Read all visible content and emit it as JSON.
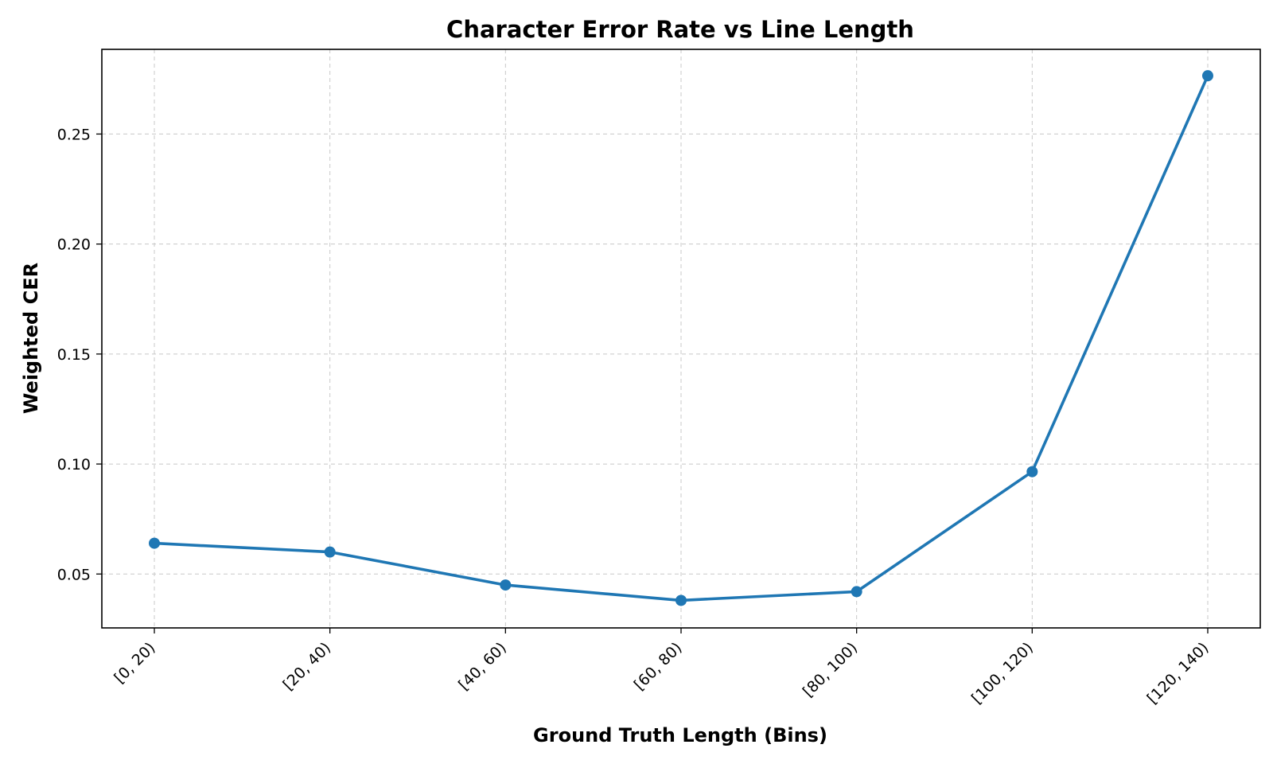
{
  "chart_data": {
    "type": "line",
    "title": "Character Error Rate vs Line Length",
    "xlabel": "Ground Truth Length (Bins)",
    "ylabel": "Weighted CER",
    "categories": [
      "[0, 20)",
      "[20, 40)",
      "[40, 60)",
      "[60, 80)",
      "[80, 100)",
      "[100, 120)",
      "[120, 140)"
    ],
    "series": [
      {
        "values": [
          0.064,
          0.06,
          0.045,
          0.038,
          0.042,
          0.0965,
          0.2765
        ],
        "color": "#1f77b4",
        "marker": "circle"
      }
    ],
    "yticks": [
      0.05,
      0.1,
      0.15,
      0.2,
      0.25
    ],
    "ytick_labels": [
      "0.05",
      "0.10",
      "0.15",
      "0.20",
      "0.25"
    ],
    "ylim": [
      0.0255,
      0.2885
    ],
    "grid": true,
    "legend": "none"
  }
}
